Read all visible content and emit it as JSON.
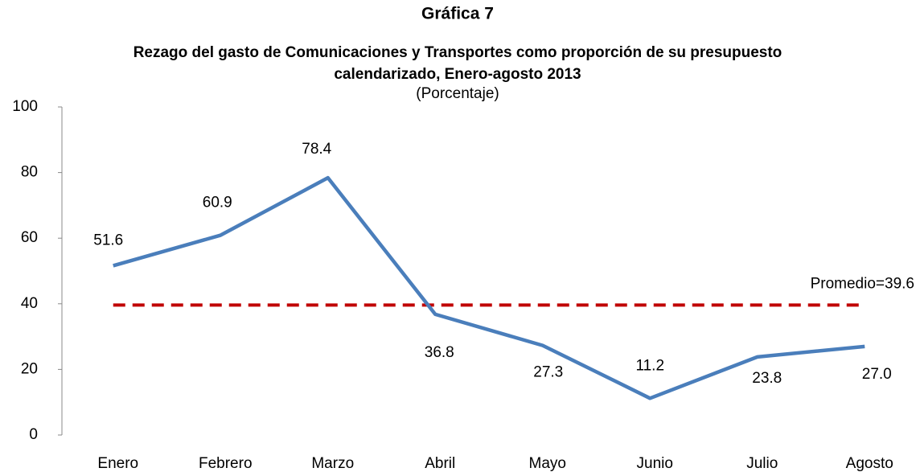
{
  "chart_data": {
    "type": "line",
    "title": "Gráfica 7",
    "subtitle": [
      "Rezago del gasto de Comunicaciones y Transportes como proporción de su presupuesto",
      "calendarizado, Enero-agosto 2013"
    ],
    "y_label": "(Porcentaje)",
    "categories": [
      "Enero",
      "Febrero",
      "Marzo",
      "Abril",
      "Mayo",
      "Junio",
      "Julio",
      "Agosto"
    ],
    "series": [
      {
        "name": "Rezago",
        "color": "#4a7ebb",
        "values": [
          51.6,
          60.9,
          78.4,
          36.8,
          27.3,
          11.2,
          23.8,
          27.0
        ],
        "value_labels": [
          "51.6",
          "60.9",
          "78.4",
          "36.8",
          "27.3",
          "11.2",
          "23.8",
          "27.0"
        ]
      }
    ],
    "reference_line": {
      "value": 39.6,
      "label": "Promedio=39.6",
      "color": "#c00000"
    },
    "ylim": [
      0,
      100
    ],
    "yticks": [
      0,
      20,
      40,
      60,
      80,
      100
    ],
    "grid": false
  }
}
